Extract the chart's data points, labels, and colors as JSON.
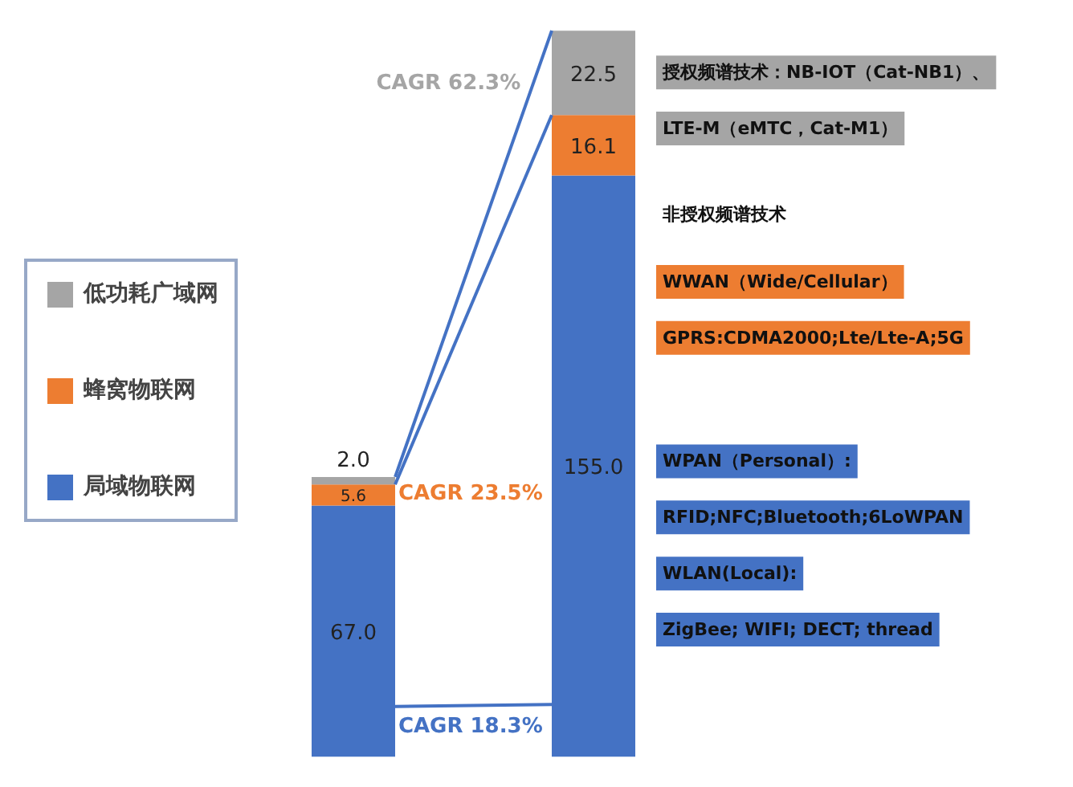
{
  "chart_data": {
    "type": "bar",
    "stacked": true,
    "categories": [
      null,
      null
    ],
    "legend": "left",
    "series": [
      {
        "name": "局域物联网",
        "color": "#4472c4",
        "values": [
          67.0,
          155.0
        ],
        "value_labels": [
          "67.0",
          "155.0"
        ]
      },
      {
        "name": "蜂窝物联网",
        "color": "#ed7d31",
        "values": [
          5.6,
          16.1
        ],
        "value_labels": [
          "5.6",
          "16.1"
        ]
      },
      {
        "name": "低功耗广域网",
        "color": "#a5a5a5",
        "values": [
          2.0,
          22.5
        ],
        "value_labels": [
          "2.0",
          "22.5"
        ]
      }
    ],
    "annotations": [
      "CAGR 18.3%",
      "CAGR 23.5%",
      "CAGR 62.3%",
      "授权频谱技术：NB-IOT（Cat-NB1）、",
      "LTE-M（eMTC，Cat-M1）",
      "非授权频谱技术",
      "WWAN（Wide/Cellular）",
      "GPRS:CDMA2000;Lte/Lte-A;5G",
      "WPAN（Personal）:",
      "RFID;NFC;Bluetooth;6LoWPAN",
      "WLAN(Local):",
      "ZigBee; WIFI; DECT; thread"
    ]
  }
}
